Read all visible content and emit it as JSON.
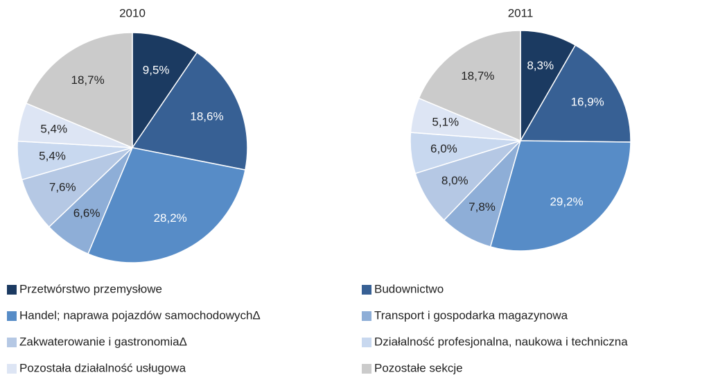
{
  "chart_data": [
    {
      "type": "pie",
      "title": "2010",
      "categories": [
        "Przetwórstwo przemysłowe",
        "Budownictwo",
        "Handel; naprawa pojazdów samochodowychΔ",
        "Transport i gospodarka magazynowa",
        "Zakwaterowanie i gastronomiaΔ",
        "Działalność profesjonalna, naukowa i techniczna",
        "Pozostała działalność usługowa",
        "Pozostałe sekcje"
      ],
      "values": [
        9.5,
        18.6,
        28.2,
        6.6,
        7.6,
        5.4,
        5.4,
        18.7
      ],
      "value_labels": [
        "9,5%",
        "18,6%",
        "28,2%",
        "6,6%",
        "7,6%",
        "5,4%",
        "5,4%",
        "18,7%"
      ],
      "colors": [
        "#1b3a61",
        "#376094",
        "#578cc7",
        "#8eaed7",
        "#b5c8e4",
        "#c8d8ef",
        "#dde5f4",
        "#cbcbcb"
      ]
    },
    {
      "type": "pie",
      "title": "2011",
      "categories": [
        "Przetwórstwo przemysłowe",
        "Budownictwo",
        "Handel; naprawa pojazdów samochodowychΔ",
        "Transport i gospodarka magazynowa",
        "Zakwaterowanie i gastronomiaΔ",
        "Działalność profesjonalna, naukowa i techniczna",
        "Pozostała działalność usługowa",
        "Pozostałe sekcje"
      ],
      "values": [
        8.3,
        16.9,
        29.2,
        7.8,
        8.0,
        6.0,
        5.1,
        18.7
      ],
      "value_labels": [
        "8,3%",
        "16,9%",
        "29,2%",
        "7,8%",
        "8,0%",
        "6,0%",
        "5,1%",
        "18,7%"
      ],
      "colors": [
        "#1b3a61",
        "#376094",
        "#578cc7",
        "#8eaed7",
        "#b5c8e4",
        "#c8d8ef",
        "#dde5f4",
        "#cbcbcb"
      ]
    }
  ]
}
